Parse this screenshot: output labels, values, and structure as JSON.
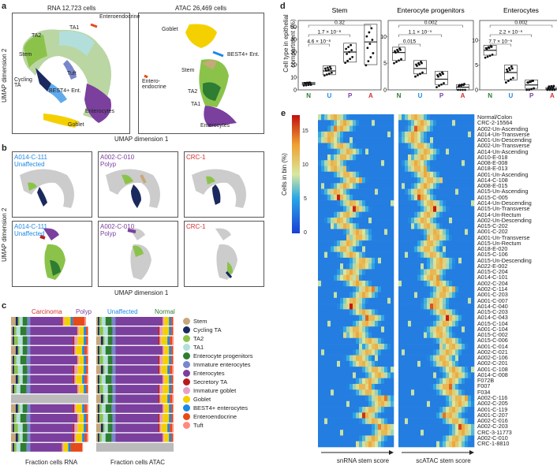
{
  "panel_labels": {
    "a": "a",
    "b": "b",
    "c": "c",
    "d": "d",
    "e": "e"
  },
  "panel_a": {
    "rna_title": "RNA 12,723 cells",
    "atac_title": "ATAC 26,469 cells",
    "xlabel": "UMAP dimension 1",
    "ylabel": "UMAP dimension 2",
    "rna_labels": [
      "Enteroendocrine",
      "TA2",
      "TA1",
      "Stem",
      "Tuft",
      "Cycling TA",
      "BEST4+ Ent.",
      "Enterocytes",
      "Goblet"
    ],
    "atac_labels": [
      "Goblet",
      "BEST4+ Ent.",
      "Stem",
      "Entero-endocrine",
      "TA2",
      "TA1",
      "Enterocytes"
    ]
  },
  "panel_b": {
    "xlabel": "UMAP dimension 1",
    "ylabel": "UMAP dimension 2",
    "rna_samples": [
      {
        "id": "A014-C-111",
        "status": "Unaffected"
      },
      {
        "id": "A002-C-010",
        "status": "Polyp"
      },
      {
        "id": "CRC-1",
        "status": ""
      }
    ],
    "atac_samples": [
      {
        "id": "A014-C-111",
        "status": "Unaffected"
      },
      {
        "id": "A002-C-010",
        "status": "Polyp"
      },
      {
        "id": "CRC-1",
        "status": ""
      }
    ]
  },
  "panel_c": {
    "headers": {
      "carcinoma": "Carcinoma",
      "polyp": "Polyp",
      "unaffected": "Unaffected",
      "normal": "Normal"
    },
    "xlabel_rna": "Fraction cells RNA",
    "xlabel_atac": "Fraction cells ATAC",
    "legend": [
      {
        "name": "Stem",
        "color": "#c7a87a"
      },
      {
        "name": "Cycling TA",
        "color": "#1a2a5e"
      },
      {
        "name": "TA2",
        "color": "#8bc34a"
      },
      {
        "name": "TA1",
        "color": "#b2dfdb"
      },
      {
        "name": "Enterocyte progenitors",
        "color": "#2e7d32"
      },
      {
        "name": "Immature enterocytes",
        "color": "#7986cb"
      },
      {
        "name": "Enterocytes",
        "color": "#7b3f9e"
      },
      {
        "name": "Secretory TA",
        "color": "#b71c1c"
      },
      {
        "name": "Immature goblet",
        "color": "#e6a0c4"
      },
      {
        "name": "Goblet",
        "color": "#f5d000"
      },
      {
        "name": "BEST4+ enterocytes",
        "color": "#1e88e5"
      },
      {
        "name": "Enteroendocrine",
        "color": "#e64a19"
      },
      {
        "name": "Tuft",
        "color": "#ff8a80"
      }
    ]
  },
  "panel_d": {
    "ylabel": "Cell type in epithelial compartment (%)",
    "chart_data": [
      {
        "type": "box",
        "title": "Stem",
        "categories": [
          "N",
          "U",
          "P",
          "A"
        ],
        "yticks": [
          0,
          10,
          20,
          30,
          40,
          50
        ],
        "ylim": [
          0,
          55
        ],
        "pvalues": [
          "4.6 × 10⁻⁸",
          "1.7 × 10⁻⁸",
          "0.32"
        ],
        "medians": [
          5,
          15,
          30,
          38
        ],
        "q1": [
          4,
          12,
          22,
          20
        ],
        "q3": [
          6,
          19,
          37,
          52
        ]
      },
      {
        "type": "box",
        "title": "Enterocyte progenitors",
        "categories": [
          "N",
          "U",
          "P",
          "A"
        ],
        "yticks": [
          0,
          5,
          10
        ],
        "ylim": [
          0,
          13
        ],
        "pvalues": [
          "0.015",
          "1.1 × 10⁻⁵",
          "0.002"
        ],
        "medians": [
          7,
          4,
          2,
          0.5
        ],
        "q1": [
          5.5,
          3,
          1,
          0
        ],
        "q3": [
          8,
          5.5,
          3.5,
          1
        ]
      },
      {
        "type": "box",
        "title": "Enterocytes",
        "categories": [
          "N",
          "U",
          "P",
          "A"
        ],
        "yticks": [
          0,
          5,
          10
        ],
        "ylim": [
          0,
          14
        ],
        "pvalues": [
          "7.7 × 10⁻⁶",
          "2.2 × 10⁻⁶",
          "0.002"
        ],
        "medians": [
          8,
          3.5,
          1,
          0.2
        ],
        "q1": [
          7,
          2,
          0.3,
          0
        ],
        "q3": [
          9,
          5,
          2,
          0.5
        ]
      }
    ]
  },
  "panel_e": {
    "colorbar_title": "Cells in bin (%)",
    "colorbar_ticks": [
      "15",
      "10",
      "5",
      "0"
    ],
    "xlabel_rna": "snRNA stem score",
    "xlabel_atac": "scATAC stem score",
    "samples": [
      "Normal/Colon",
      "CRC-2-15564",
      "A002-Un-Ascending",
      "A014-Un-Transverse",
      "A001-Un-Descending",
      "A002-Un-Transverse",
      "A014-Un-Ascending",
      "A010-E-018",
      "A008-E-008",
      "A018-E-013",
      "A001-Un-Ascending",
      "A014-C-108",
      "A008-E-015",
      "A015-Un-Ascending",
      "A015-C-005",
      "A014-Un-Descending",
      "A015-Un-Transverse",
      "A014-Un-Rectum",
      "A002-Un-Descending",
      "A015-C-202",
      "A001-C-202",
      "A001-Un-Transverse",
      "A015-Un-Rectum",
      "A018-E-020",
      "A015-C-106",
      "A015-Un-Descending",
      "A022-E-002",
      "A015-C-204",
      "A014-C-101",
      "A002-C-204",
      "A002-C-114",
      "A001-C-203",
      "A001-C-007",
      "A014-C-040",
      "A015-C-203",
      "A014-C-043",
      "A015-C-104",
      "A001-C-104",
      "A015-C-002",
      "A015-C-006",
      "A001-C-014",
      "A002-C-021",
      "A002-C-106",
      "A002-C-201",
      "A001-C-108",
      "A014-C-008",
      "F072B",
      "F007",
      "F034",
      "A002-C-116",
      "A002-C-205",
      "A001-C-119",
      "A001-C-207",
      "A002-C-016",
      "A002-C-203",
      "CRC-3-11773",
      "A002-C-010",
      "CRC-1-8810"
    ]
  }
}
